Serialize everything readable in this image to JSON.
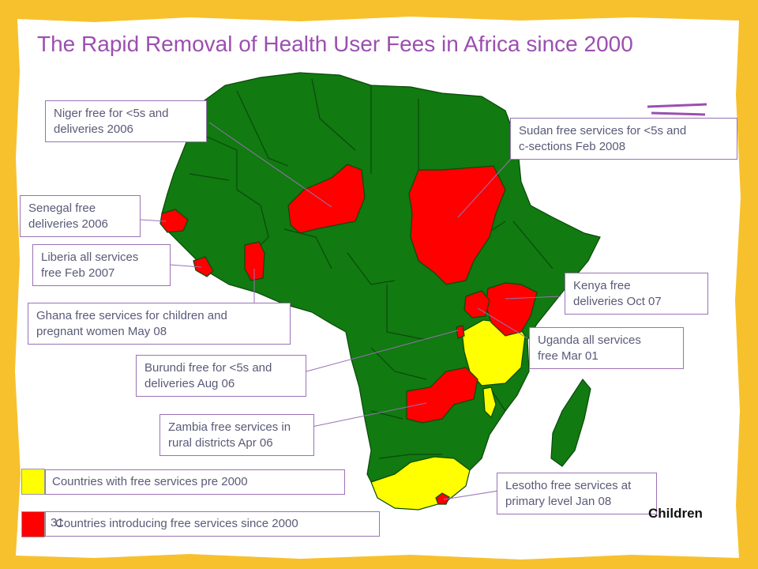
{
  "title": "The Rapid Removal of Health User Fees in Africa since 2000",
  "colors": {
    "background": "#f7c12e",
    "paper": "#ffffff",
    "other_countries": "#117a11",
    "free_pre_2000": "#ffff00",
    "free_since_2000": "#ff0000",
    "title": "#9b4fb0",
    "callout_border": "#9a72b4"
  },
  "callouts": [
    {
      "id": "niger",
      "country": "Niger",
      "lines": [
        "Niger free for <5s and",
        "deliveries 2006"
      ]
    },
    {
      "id": "sudan",
      "country": "Sudan",
      "lines": [
        "Sudan free services for <5s and",
        "c-sections  Feb 2008"
      ]
    },
    {
      "id": "senegal",
      "country": "Senegal",
      "lines": [
        "Senegal free",
        "deliveries 2006"
      ]
    },
    {
      "id": "liberia",
      "country": "Liberia",
      "lines": [
        "Liberia all services",
        "free Feb 2007"
      ]
    },
    {
      "id": "ghana",
      "country": "Ghana",
      "lines": [
        "Ghana free services for children and",
        "pregnant women May 08"
      ]
    },
    {
      "id": "kenya",
      "country": "Kenya",
      "lines": [
        "Kenya free",
        "deliveries Oct 07"
      ]
    },
    {
      "id": "uganda",
      "country": "Uganda",
      "lines": [
        "Uganda all services",
        "free Mar 01"
      ]
    },
    {
      "id": "burundi",
      "country": "Burundi",
      "lines": [
        "Burundi free for <5s and",
        "deliveries Aug 06"
      ]
    },
    {
      "id": "zambia",
      "country": "Zambia",
      "lines": [
        "Zambia free services in",
        "rural districts Apr 06"
      ]
    },
    {
      "id": "lesotho",
      "country": "Lesotho",
      "lines": [
        "Lesotho free services at",
        "primary level Jan 08"
      ]
    }
  ],
  "legend": [
    {
      "label": "Countries with free services pre 2000",
      "color": "#ffff00"
    },
    {
      "label": "Countries introducing free services since 2000",
      "color": "#ff0000"
    }
  ],
  "slide_number": "31",
  "brand": "Children"
}
